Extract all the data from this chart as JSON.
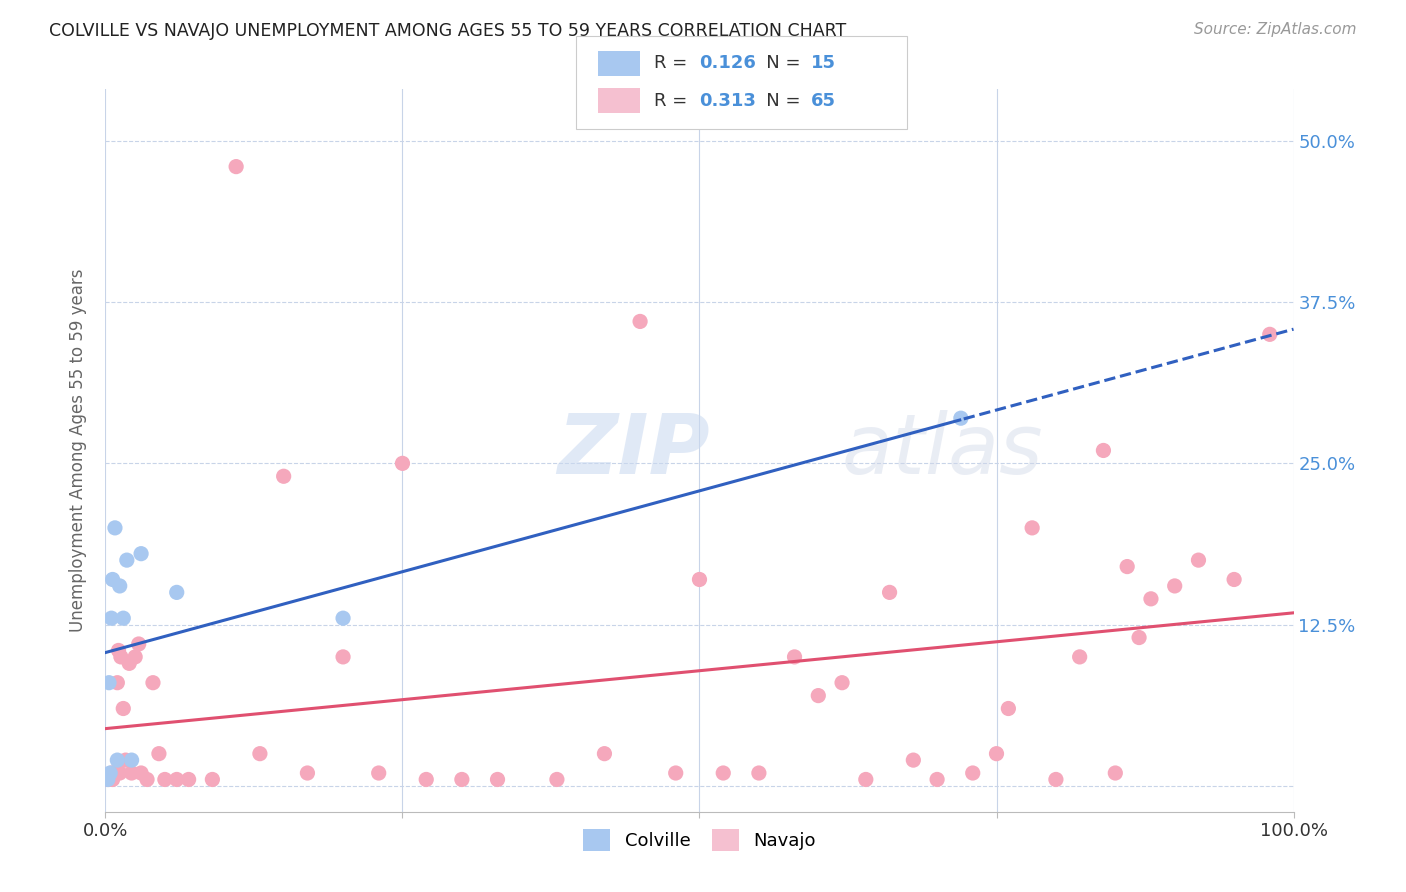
{
  "title": "COLVILLE VS NAVAJO UNEMPLOYMENT AMONG AGES 55 TO 59 YEARS CORRELATION CHART",
  "source": "Source: ZipAtlas.com",
  "ylabel": "Unemployment Among Ages 55 to 59 years",
  "xlim": [
    0,
    1.0
  ],
  "ylim": [
    -0.02,
    0.54
  ],
  "x_ticks": [
    0.0,
    0.25,
    0.5,
    0.75,
    1.0
  ],
  "x_tick_labels": [
    "0.0%",
    "",
    "",
    "",
    "100.0%"
  ],
  "y_ticks": [
    0.0,
    0.125,
    0.25,
    0.375,
    0.5
  ],
  "y_tick_labels_right": [
    "",
    "12.5%",
    "25.0%",
    "37.5%",
    "50.0%"
  ],
  "colville_R": 0.126,
  "colville_N": 15,
  "navajo_R": 0.313,
  "navajo_N": 65,
  "colville_color": "#a8c8f0",
  "navajo_color": "#f5a8bc",
  "trend_colville_color": "#3060c0",
  "trend_navajo_color": "#e05070",
  "background_color": "#ffffff",
  "grid_color": "#c8d4e8",
  "watermark": "ZIPatlas",
  "legend_color_colville": "#a8c8f0",
  "legend_color_navajo": "#f5c0d0",
  "colville_x": [
    0.002,
    0.003,
    0.004,
    0.005,
    0.006,
    0.008,
    0.01,
    0.012,
    0.015,
    0.018,
    0.022,
    0.03,
    0.06,
    0.2,
    0.72
  ],
  "colville_y": [
    0.005,
    0.08,
    0.01,
    0.13,
    0.16,
    0.2,
    0.02,
    0.155,
    0.13,
    0.175,
    0.02,
    0.18,
    0.15,
    0.13,
    0.285
  ],
  "navajo_x": [
    0.002,
    0.003,
    0.004,
    0.005,
    0.006,
    0.007,
    0.008,
    0.009,
    0.01,
    0.011,
    0.012,
    0.013,
    0.015,
    0.017,
    0.02,
    0.022,
    0.025,
    0.028,
    0.03,
    0.035,
    0.04,
    0.045,
    0.05,
    0.06,
    0.07,
    0.09,
    0.11,
    0.13,
    0.15,
    0.17,
    0.2,
    0.23,
    0.25,
    0.27,
    0.3,
    0.33,
    0.38,
    0.42,
    0.45,
    0.48,
    0.5,
    0.52,
    0.55,
    0.58,
    0.6,
    0.62,
    0.64,
    0.66,
    0.68,
    0.7,
    0.73,
    0.75,
    0.76,
    0.78,
    0.8,
    0.82,
    0.84,
    0.85,
    0.86,
    0.87,
    0.88,
    0.9,
    0.92,
    0.95,
    0.98
  ],
  "navajo_y": [
    0.005,
    0.005,
    0.008,
    0.01,
    0.005,
    0.01,
    0.01,
    0.01,
    0.08,
    0.105,
    0.01,
    0.1,
    0.06,
    0.02,
    0.095,
    0.01,
    0.1,
    0.11,
    0.01,
    0.005,
    0.08,
    0.025,
    0.005,
    0.005,
    0.005,
    0.005,
    0.48,
    0.025,
    0.24,
    0.01,
    0.1,
    0.01,
    0.25,
    0.005,
    0.005,
    0.005,
    0.005,
    0.025,
    0.36,
    0.01,
    0.16,
    0.01,
    0.01,
    0.1,
    0.07,
    0.08,
    0.005,
    0.15,
    0.02,
    0.005,
    0.01,
    0.025,
    0.06,
    0.2,
    0.005,
    0.1,
    0.26,
    0.01,
    0.17,
    0.115,
    0.145,
    0.155,
    0.175,
    0.16,
    0.35
  ]
}
